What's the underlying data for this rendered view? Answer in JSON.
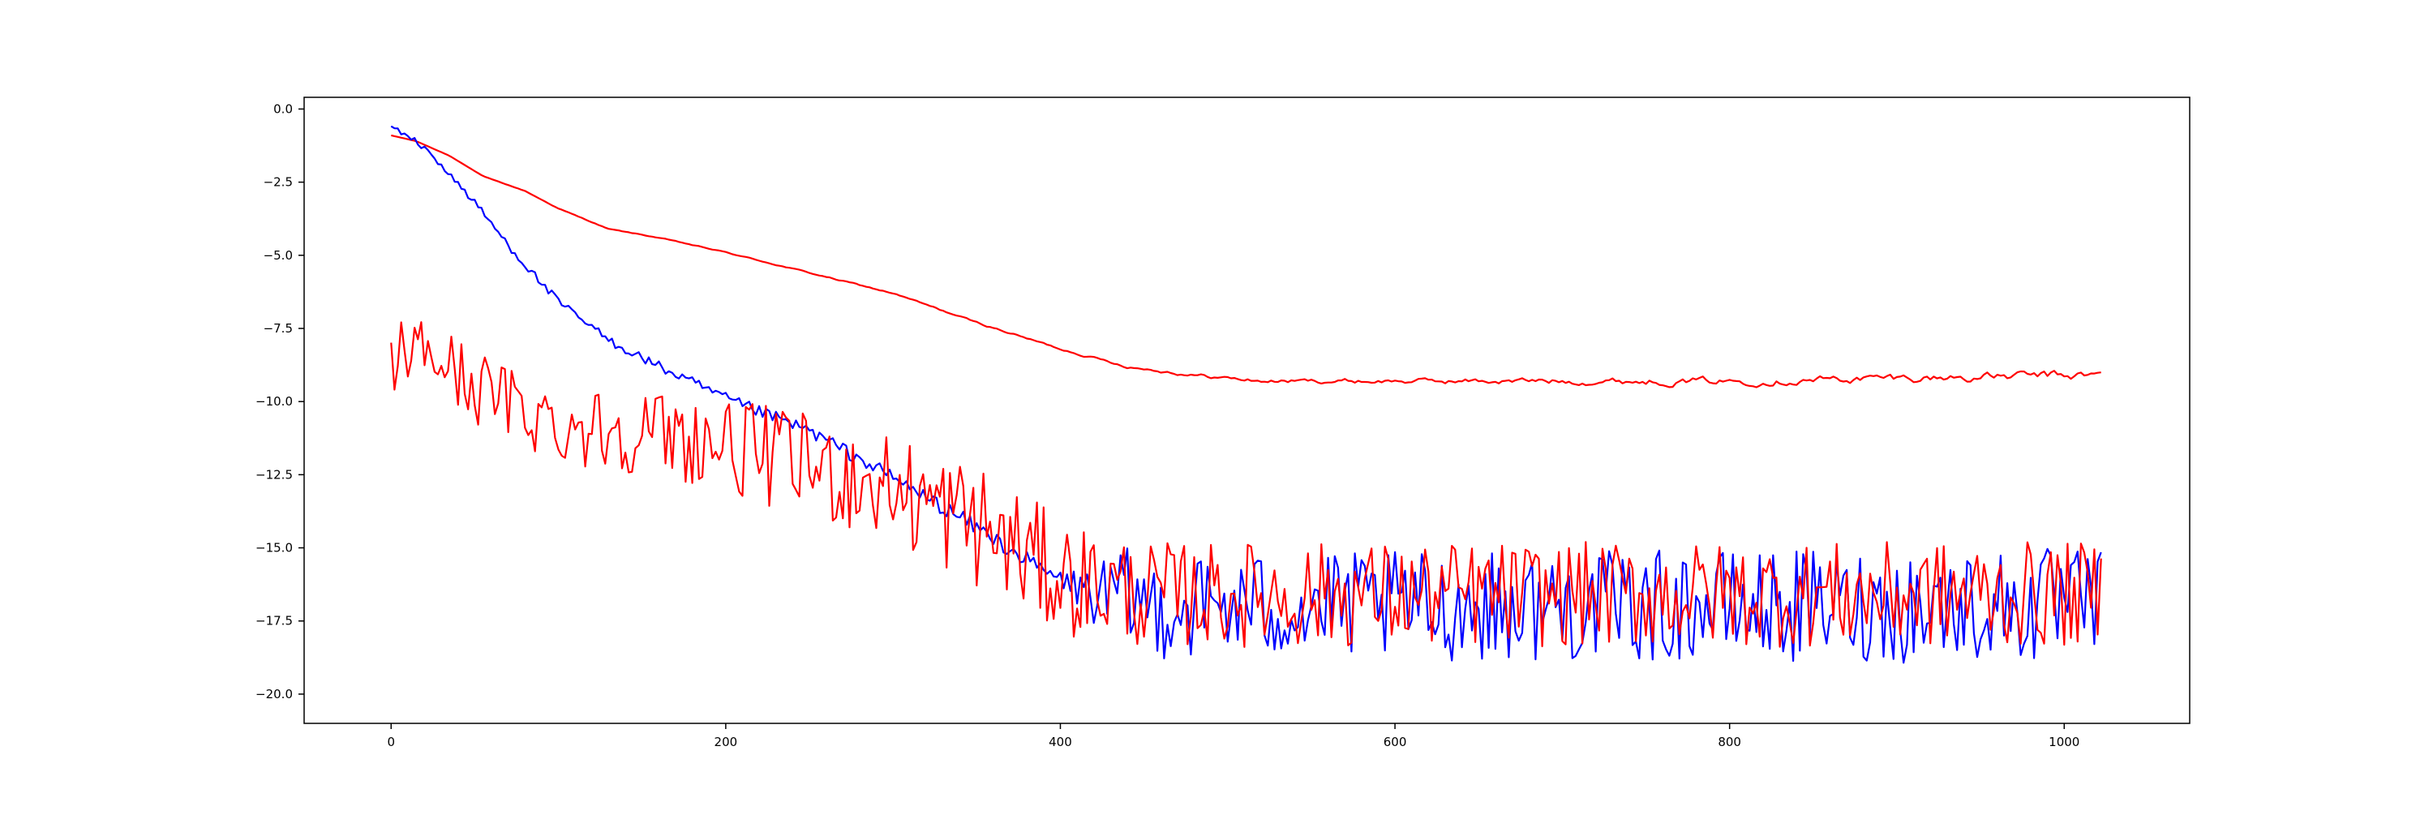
{
  "chart_data": {
    "type": "line",
    "title": "",
    "xlabel": "",
    "ylabel": "",
    "xlim": [
      -52,
      1075
    ],
    "ylim": [
      -21.0,
      0.4
    ],
    "grid": false,
    "legend": "none",
    "x_ticks": [
      0,
      200,
      400,
      600,
      800,
      1000
    ],
    "x_tick_labels": [
      "0",
      "200",
      "400",
      "600",
      "800",
      "1000"
    ],
    "y_ticks": [
      0.0,
      -2.5,
      -5.0,
      -7.5,
      -10.0,
      -12.5,
      -15.0,
      -17.5,
      -20.0
    ],
    "y_tick_labels": [
      "0.0",
      "−2.5",
      "−5.0",
      "−7.5",
      "−10.0",
      "−12.5",
      "−15.0",
      "−17.5",
      "−20.0"
    ],
    "x_range": [
      0,
      1023
    ],
    "series": [
      {
        "color": "#ff0000",
        "style": "smooth",
        "control_points": [
          [
            0,
            -0.9
          ],
          [
            15,
            -1.1
          ],
          [
            35,
            -1.6
          ],
          [
            55,
            -2.3
          ],
          [
            80,
            -2.8
          ],
          [
            100,
            -3.4
          ],
          [
            130,
            -4.1
          ],
          [
            160,
            -4.4
          ],
          [
            200,
            -4.9
          ],
          [
            250,
            -5.6
          ],
          [
            300,
            -6.3
          ],
          [
            350,
            -7.3
          ],
          [
            400,
            -8.2
          ],
          [
            440,
            -8.8
          ],
          [
            480,
            -9.1
          ],
          [
            520,
            -9.3
          ],
          [
            560,
            -9.3
          ],
          [
            600,
            -9.3
          ],
          [
            700,
            -9.3
          ],
          [
            800,
            -9.3
          ],
          [
            900,
            -9.2
          ],
          [
            1023,
            -9.1
          ]
        ],
        "noise_amplitude": [
          [
            0,
            0.0
          ],
          [
            400,
            0.05
          ],
          [
            500,
            0.1
          ],
          [
            1023,
            0.25
          ]
        ]
      },
      {
        "color": "#0000ff",
        "style": "noisy",
        "control_points": [
          [
            0,
            -0.6
          ],
          [
            10,
            -0.9
          ],
          [
            25,
            -1.6
          ],
          [
            50,
            -3.2
          ],
          [
            75,
            -5.0
          ],
          [
            100,
            -6.6
          ],
          [
            130,
            -7.9
          ],
          [
            160,
            -8.8
          ],
          [
            200,
            -9.9
          ],
          [
            250,
            -11.0
          ],
          [
            300,
            -12.6
          ],
          [
            350,
            -14.3
          ],
          [
            390,
            -15.8
          ],
          [
            420,
            -16.6
          ],
          [
            460,
            -17.0
          ],
          [
            1023,
            -17.0
          ]
        ],
        "noise_amplitude": [
          [
            0,
            0.1
          ],
          [
            400,
            0.3
          ],
          [
            440,
            1.8
          ],
          [
            1023,
            2.0
          ]
        ]
      },
      {
        "color": "#ff0000",
        "style": "noisy",
        "control_points": [
          [
            0,
            -8.5
          ],
          [
            20,
            -8.2
          ],
          [
            50,
            -9.5
          ],
          [
            100,
            -10.8
          ],
          [
            150,
            -11.0
          ],
          [
            200,
            -11.5
          ],
          [
            250,
            -12.2
          ],
          [
            300,
            -13.0
          ],
          [
            350,
            -14.2
          ],
          [
            400,
            -16.0
          ],
          [
            450,
            -16.6
          ],
          [
            1023,
            -16.6
          ]
        ],
        "noise_amplitude": [
          [
            0,
            1.2
          ],
          [
            200,
            1.6
          ],
          [
            350,
            2.2
          ],
          [
            450,
            1.8
          ],
          [
            1023,
            1.8
          ]
        ]
      }
    ]
  }
}
